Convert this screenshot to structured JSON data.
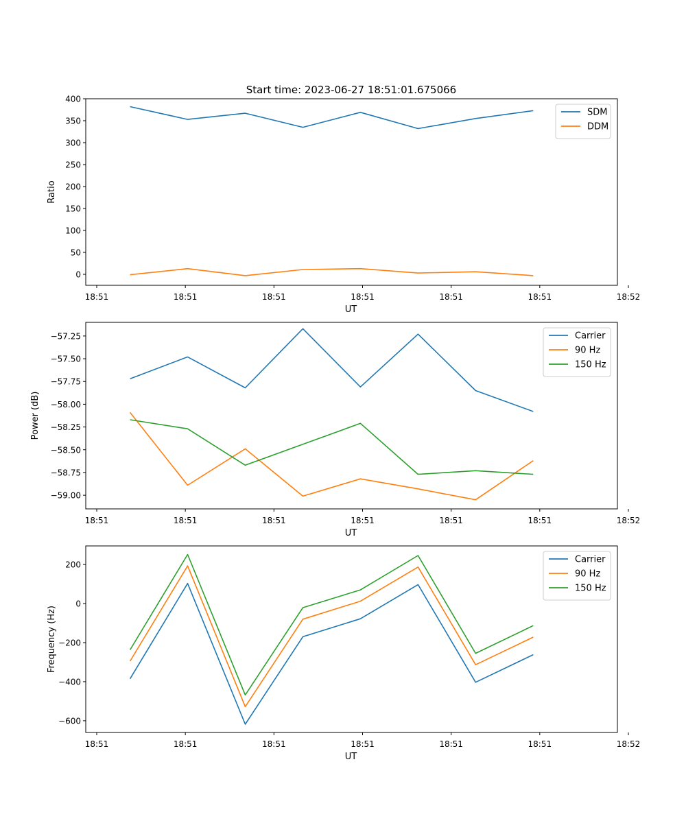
{
  "title": "Start time: 2023-06-27 18:51:01.675066",
  "chart_data": [
    {
      "type": "line",
      "ylabel": "Ratio",
      "xlabel": "UT",
      "ylim": [
        -25,
        400
      ],
      "yticks": [
        0,
        50,
        100,
        150,
        200,
        250,
        300,
        350,
        400
      ],
      "ytick_labels": [
        "0",
        "50",
        "100",
        "150",
        "200",
        "250",
        "300",
        "350",
        "400"
      ],
      "x": [
        0.5,
        1.15,
        1.8,
        2.45,
        3.1,
        3.75,
        4.4,
        5.05
      ],
      "xlim": [
        0,
        6
      ],
      "xticks": [
        0,
        1,
        2,
        3,
        4,
        5,
        6
      ],
      "xtick_labels": [
        "18:51",
        "18:51",
        "18:51",
        "18:51",
        "18:51",
        "18:51",
        "18:52"
      ],
      "legend": "top-right",
      "series": [
        {
          "name": "SDM",
          "color": "#1f77b4",
          "values": [
            382,
            353,
            367,
            335,
            369,
            332,
            355,
            373
          ]
        },
        {
          "name": "DDM",
          "color": "#ff7f0e",
          "values": [
            -1,
            13,
            -3,
            11,
            13,
            3,
            6,
            -3
          ]
        }
      ]
    },
    {
      "type": "line",
      "ylabel": "Power (dB)",
      "xlabel": "UT",
      "ylim": [
        -59.15,
        -57.1
      ],
      "yticks": [
        -59.0,
        -58.75,
        -58.5,
        -58.25,
        -58.0,
        -57.75,
        -57.5,
        -57.25
      ],
      "ytick_labels": [
        "−59.00",
        "−58.75",
        "−58.50",
        "−58.25",
        "−58.00",
        "−57.75",
        "−57.50",
        "−57.25"
      ],
      "x": [
        0.5,
        1.15,
        1.8,
        2.45,
        3.1,
        3.75,
        4.4,
        5.05
      ],
      "xlim": [
        0,
        6
      ],
      "xticks": [
        0,
        1,
        2,
        3,
        4,
        5,
        6
      ],
      "xtick_labels": [
        "18:51",
        "18:51",
        "18:51",
        "18:51",
        "18:51",
        "18:51",
        "18:52"
      ],
      "legend": "top-right",
      "series": [
        {
          "name": "Carrier",
          "color": "#1f77b4",
          "values": [
            -57.72,
            -57.48,
            -57.82,
            -57.17,
            -57.81,
            -57.23,
            -57.85,
            -58.08
          ]
        },
        {
          "name": "90 Hz",
          "color": "#ff7f0e",
          "values": [
            -58.09,
            -58.89,
            -58.49,
            -59.01,
            -58.82,
            -58.93,
            -59.05,
            -58.62
          ]
        },
        {
          "name": "150 Hz",
          "color": "#2ca02c",
          "values": [
            -58.17,
            -58.27,
            -58.67,
            -58.44,
            -58.21,
            -58.77,
            -58.73,
            -58.77
          ]
        }
      ]
    },
    {
      "type": "line",
      "ylabel": "Frequency (Hz)",
      "xlabel": "UT",
      "ylim": [
        -660,
        295
      ],
      "yticks": [
        -600,
        -400,
        -200,
        0,
        200
      ],
      "ytick_labels": [
        "−600",
        "−400",
        "−200",
        "0",
        "200"
      ],
      "x": [
        0.5,
        1.15,
        1.8,
        2.45,
        3.1,
        3.75,
        4.4,
        5.05
      ],
      "xlim": [
        0,
        6
      ],
      "xticks": [
        0,
        1,
        2,
        3,
        4,
        5,
        6
      ],
      "xtick_labels": [
        "18:51",
        "18:51",
        "18:51",
        "18:51",
        "18:51",
        "18:51",
        "18:52"
      ],
      "legend": "top-right",
      "series": [
        {
          "name": "Carrier",
          "color": "#1f77b4",
          "values": [
            -385,
            103,
            -618,
            -170,
            -78,
            97,
            -403,
            -262
          ]
        },
        {
          "name": "90 Hz",
          "color": "#ff7f0e",
          "values": [
            -295,
            193,
            -528,
            -80,
            12,
            187,
            -313,
            -172
          ]
        },
        {
          "name": "150 Hz",
          "color": "#2ca02c",
          "values": [
            -237,
            251,
            -468,
            -21,
            70,
            246,
            -255,
            -113
          ]
        }
      ]
    }
  ]
}
